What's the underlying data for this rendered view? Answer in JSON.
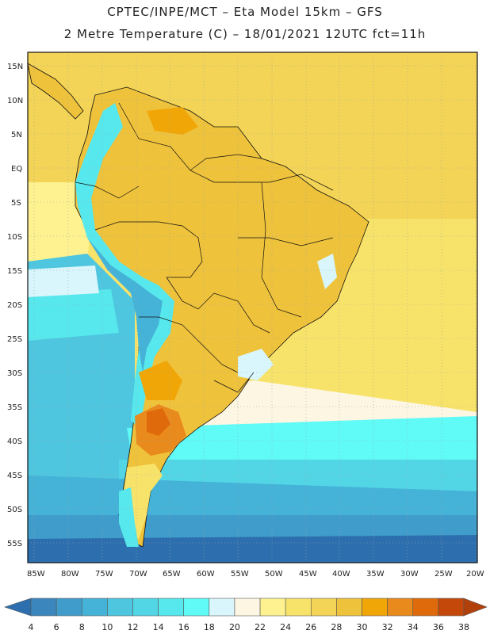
{
  "header": {
    "line1": "CPTEC/INPE/MCT –  Eta Model 15km – GFS",
    "line2": "2 Metre Temperature (C) – 18/01/2021 12UTC fct=11h"
  },
  "map": {
    "lat_labels": [
      "15N",
      "10N",
      "5N",
      "EQ",
      "5S",
      "10S",
      "15S",
      "20S",
      "25S",
      "30S",
      "35S",
      "40S",
      "45S",
      "50S",
      "55S"
    ],
    "lon_labels": [
      "85W",
      "80W",
      "75W",
      "70W",
      "65W",
      "60W",
      "55W",
      "50W",
      "45W",
      "40W",
      "35W",
      "30W",
      "25W",
      "20W"
    ]
  },
  "colorbar": {
    "labels": [
      "4",
      "6",
      "8",
      "10",
      "12",
      "14",
      "16",
      "18",
      "20",
      "22",
      "24",
      "26",
      "28",
      "30",
      "32",
      "34",
      "36",
      "38"
    ],
    "colors": [
      "#2d6fae",
      "#3a86bd",
      "#3f9ccb",
      "#45b3d8",
      "#4ec6df",
      "#52d6e6",
      "#56e8ec",
      "#60faf7",
      "#d8f6fb",
      "#fdf6e3",
      "#fdf28f",
      "#f8e36a",
      "#f3d456",
      "#efc23b",
      "#f1a608",
      "#e98a1d",
      "#df6a0b",
      "#c4480a",
      "#b2400b"
    ]
  }
}
